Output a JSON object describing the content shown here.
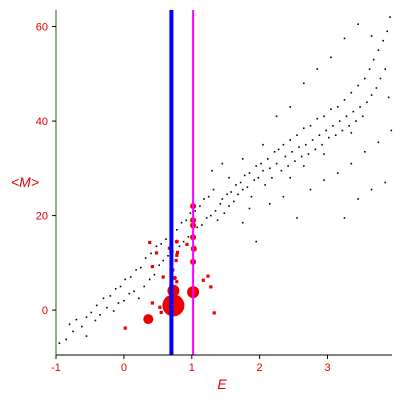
{
  "chart_data": {
    "type": "scatter",
    "title": "",
    "xlabel": "E",
    "ylabel": "<M>",
    "xlim": [
      -1,
      3.95
    ],
    "ylim": [
      -9.5,
      63.5
    ],
    "x_ticks": [
      -1,
      0,
      1,
      2,
      3
    ],
    "y_ticks": [
      0,
      20,
      40,
      60
    ],
    "grid": false,
    "colors": {
      "axis": "#000000",
      "left_axis": "#2e5e1e",
      "tick_labels": "#e00000",
      "series_black": "#000000",
      "series_red": "#ee0000",
      "line_blue": "#0000ff",
      "line_magenta": "#ff00ff"
    },
    "vertical_lines": [
      {
        "name": "blue",
        "x": 0.7,
        "color": "#0000ff"
      },
      {
        "name": "magenta",
        "x": 1.02,
        "color": "#ff00ff"
      }
    ],
    "series": [
      {
        "color": "#000000",
        "marker": "dot",
        "points": [
          [
            -0.95,
            -7.0
          ],
          [
            -0.85,
            -6.2
          ],
          [
            -0.8,
            -3.0
          ],
          [
            -0.75,
            -4.5
          ],
          [
            -0.7,
            -2.0
          ],
          [
            -0.62,
            -3.5
          ],
          [
            -0.55,
            -1.5
          ],
          [
            -0.55,
            -5.5
          ],
          [
            -0.48,
            -0.5
          ],
          [
            -0.42,
            -2.2
          ],
          [
            -0.4,
            1.0
          ],
          [
            -0.35,
            -1.0
          ],
          [
            -0.3,
            2.5
          ],
          [
            -0.25,
            0.5
          ],
          [
            -0.2,
            3.0
          ],
          [
            -0.15,
            -0.2
          ],
          [
            -0.12,
            4.5
          ],
          [
            -0.08,
            1.5
          ],
          [
            -0.05,
            5.0
          ],
          [
            0.0,
            2.0
          ],
          [
            0.02,
            6.5
          ],
          [
            0.08,
            3.5
          ],
          [
            0.1,
            7.0
          ],
          [
            0.15,
            4.0
          ],
          [
            0.18,
            8.5
          ],
          [
            0.22,
            2.5
          ],
          [
            0.25,
            9.0
          ],
          [
            0.3,
            5.0
          ],
          [
            0.32,
            11.0
          ],
          [
            0.38,
            6.5
          ],
          [
            0.4,
            12.0
          ],
          [
            0.45,
            7.5
          ],
          [
            0.48,
            13.5
          ],
          [
            0.52,
            9.5
          ],
          [
            0.55,
            14.0
          ],
          [
            0.58,
            10.5
          ],
          [
            0.62,
            15.0
          ],
          [
            0.65,
            11.5
          ],
          [
            0.7,
            16.5
          ],
          [
            0.72,
            12.5
          ],
          [
            0.78,
            17.0
          ],
          [
            0.82,
            13.5
          ],
          [
            0.85,
            18.5
          ],
          [
            0.88,
            14.5
          ],
          [
            0.92,
            19.0
          ],
          [
            0.95,
            15.5
          ],
          [
            0.98,
            20.5
          ],
          [
            1.02,
            16.0
          ],
          [
            1.05,
            21.0
          ],
          [
            1.08,
            17.5
          ],
          [
            1.12,
            22.0
          ],
          [
            1.15,
            18.0
          ],
          [
            1.18,
            23.5
          ],
          [
            1.22,
            19.5
          ],
          [
            1.25,
            24.0
          ],
          [
            1.28,
            20.0
          ],
          [
            1.32,
            25.5
          ],
          [
            1.35,
            21.0
          ],
          [
            1.38,
            19.0
          ],
          [
            1.42,
            22.5
          ],
          [
            1.45,
            23.5
          ],
          [
            1.48,
            20.5
          ],
          [
            1.52,
            24.5
          ],
          [
            1.55,
            22.0
          ],
          [
            1.58,
            25.0
          ],
          [
            1.62,
            23.0
          ],
          [
            1.65,
            26.5
          ],
          [
            1.68,
            24.5
          ],
          [
            1.72,
            27.0
          ],
          [
            1.75,
            25.5
          ],
          [
            1.78,
            28.5
          ],
          [
            1.82,
            26.0
          ],
          [
            1.85,
            29.0
          ],
          [
            1.88,
            24.0
          ],
          [
            1.92,
            27.5
          ],
          [
            1.95,
            30.5
          ],
          [
            1.98,
            28.0
          ],
          [
            2.02,
            31.0
          ],
          [
            2.05,
            29.5
          ],
          [
            2.08,
            26.5
          ],
          [
            2.12,
            32.0
          ],
          [
            2.15,
            30.0
          ],
          [
            2.18,
            28.0
          ],
          [
            2.22,
            33.5
          ],
          [
            2.25,
            31.0
          ],
          [
            2.28,
            34.0
          ],
          [
            2.32,
            29.5
          ],
          [
            2.35,
            35.0
          ],
          [
            2.38,
            32.5
          ],
          [
            2.42,
            30.5
          ],
          [
            2.45,
            36.0
          ],
          [
            2.48,
            33.5
          ],
          [
            2.52,
            31.5
          ],
          [
            2.55,
            37.0
          ],
          [
            2.58,
            34.5
          ],
          [
            2.62,
            32.5
          ],
          [
            2.65,
            38.5
          ],
          [
            2.68,
            35.0
          ],
          [
            2.72,
            33.0
          ],
          [
            2.75,
            39.0
          ],
          [
            2.78,
            36.0
          ],
          [
            2.82,
            34.0
          ],
          [
            2.85,
            40.5
          ],
          [
            2.88,
            37.0
          ],
          [
            2.92,
            35.0
          ],
          [
            2.95,
            41.0
          ],
          [
            2.98,
            38.0
          ],
          [
            3.02,
            36.5
          ],
          [
            3.05,
            42.5
          ],
          [
            3.08,
            39.0
          ],
          [
            3.12,
            37.0
          ],
          [
            3.15,
            43.0
          ],
          [
            3.18,
            40.0
          ],
          [
            3.22,
            38.0
          ],
          [
            3.25,
            44.5
          ],
          [
            3.28,
            41.0
          ],
          [
            3.32,
            39.0
          ],
          [
            3.35,
            46.0
          ],
          [
            3.38,
            42.0
          ],
          [
            3.42,
            40.0
          ],
          [
            3.45,
            47.5
          ],
          [
            3.48,
            43.0
          ],
          [
            3.52,
            41.0
          ],
          [
            3.55,
            49.0
          ],
          [
            3.58,
            44.0
          ],
          [
            3.62,
            51.0
          ],
          [
            3.65,
            45.5
          ],
          [
            3.68,
            53.0
          ],
          [
            3.72,
            47.0
          ],
          [
            3.75,
            55.0
          ],
          [
            3.78,
            49.0
          ],
          [
            3.82,
            57.0
          ],
          [
            3.85,
            51.0
          ],
          [
            3.88,
            59.0
          ],
          [
            3.9,
            45.0
          ],
          [
            3.92,
            62.0
          ],
          [
            3.94,
            38.0
          ],
          [
            1.55,
            28.0
          ],
          [
            1.75,
            32.0
          ],
          [
            2.05,
            35.0
          ],
          [
            1.45,
            31.0
          ],
          [
            1.3,
            29.5
          ],
          [
            2.25,
            41.0
          ],
          [
            2.45,
            43.0
          ],
          [
            2.65,
            48.0
          ],
          [
            2.85,
            51.0
          ],
          [
            3.05,
            53.5
          ],
          [
            3.25,
            57.5
          ],
          [
            3.45,
            60.5
          ],
          [
            3.65,
            58.0
          ],
          [
            2.15,
            22.5
          ],
          [
            2.35,
            24.0
          ],
          [
            2.55,
            19.5
          ],
          [
            2.75,
            25.5
          ],
          [
            2.95,
            27.5
          ],
          [
            3.15,
            29.0
          ],
          [
            3.35,
            31.0
          ],
          [
            3.55,
            33.5
          ],
          [
            3.75,
            35.5
          ],
          [
            3.85,
            27.0
          ],
          [
            3.65,
            25.5
          ],
          [
            3.45,
            23.5
          ],
          [
            3.25,
            19.5
          ],
          [
            1.95,
            14.5
          ],
          [
            1.75,
            18.5
          ],
          [
            1.85,
            21.5
          ],
          [
            2.45,
            28.0
          ],
          [
            2.65,
            30.5
          ],
          [
            2.95,
            33.0
          ],
          [
            3.35,
            37.5
          ]
        ]
      },
      {
        "color": "#ee0000",
        "marker": "square",
        "points": [
          [
            0.02,
            -3.8
          ],
          [
            0.38,
            14.3
          ],
          [
            0.42,
            9.2
          ],
          [
            0.48,
            12.1
          ],
          [
            0.58,
            7.0
          ],
          [
            0.72,
            8.5
          ],
          [
            0.77,
            10.5
          ],
          [
            0.78,
            6.0
          ],
          [
            0.78,
            11.6
          ],
          [
            0.79,
            12.2
          ],
          [
            0.93,
            13.9
          ],
          [
            1.17,
            6.3
          ],
          [
            1.24,
            7.2
          ],
          [
            1.28,
            4.9
          ],
          [
            1.33,
            -0.6
          ],
          [
            0.67,
            13.1
          ],
          [
            0.53,
            0.6
          ],
          [
            0.38,
            -1.7
          ],
          [
            0.42,
            1.5
          ],
          [
            0.55,
            -0.5
          ]
        ]
      },
      {
        "color": "#ee0000",
        "marker": "circle",
        "points": [
          [
            0.36,
            -1.9
          ],
          [
            0.73,
            1.0
          ],
          [
            0.73,
            4.1
          ],
          [
            1.02,
            3.8
          ],
          [
            1.02,
            10.2
          ],
          [
            1.02,
            15.4
          ],
          [
            1.02,
            17.9
          ],
          [
            1.02,
            19.0
          ],
          [
            1.02,
            22.0
          ],
          [
            1.03,
            13.0
          ],
          [
            0.78,
            14.5
          ],
          [
            0.75,
            6.8
          ]
        ],
        "sizes": [
          5,
          11,
          6,
          6,
          3,
          3,
          3,
          3,
          3,
          3,
          2,
          2
        ]
      }
    ]
  }
}
